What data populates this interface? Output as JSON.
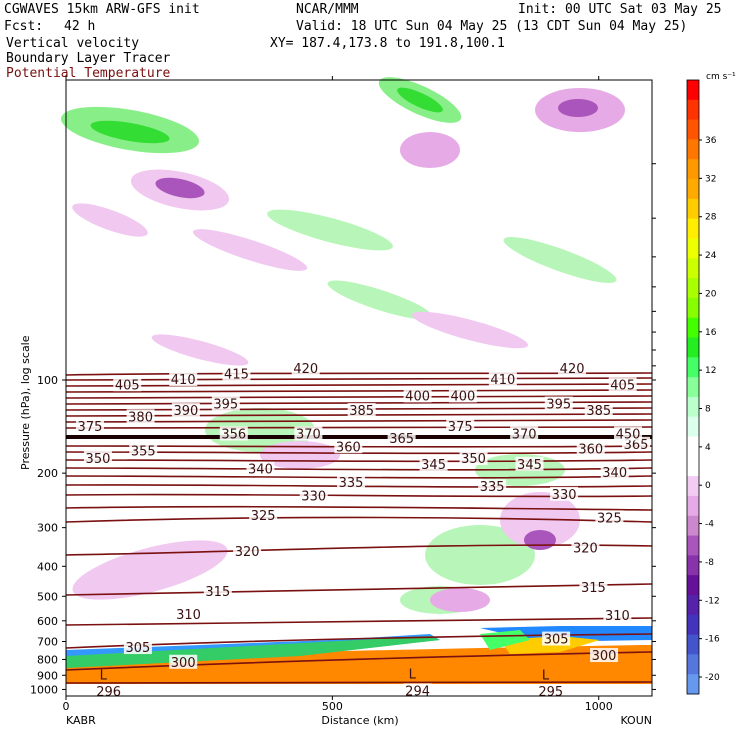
{
  "header": {
    "model": "CGWAVES 15km ARW-GFS init",
    "org": "NCAR/MMM",
    "init": "Init: 00 UTC Sat 03 May 25",
    "fcst_label": "Fcst:",
    "fcst_value": "42 h",
    "valid": "Valid: 18 UTC Sun 04 May 25 (13 CDT Sun 04 May 25)",
    "fields": [
      "Vertical velocity",
      "Boundary Layer Tracer",
      "Potential Temperature"
    ],
    "xy": "XY= 187.4,173.8 to 191.8,100.1"
  },
  "chart_data": {
    "type": "heatmap",
    "xlabel": "Distance (km)",
    "ylabel": "Pressure (hPa), log scale",
    "x_ticks": [
      "0",
      "500",
      "1000"
    ],
    "x_endpoints": [
      "KABR",
      "KOUN"
    ],
    "xlim": [
      0,
      1100
    ],
    "ylim": [
      1050,
      10
    ],
    "y_scale": "log",
    "y_ticks": [
      "100",
      "200",
      "300",
      "400",
      "500",
      "600",
      "700",
      "800",
      "900",
      "1000"
    ],
    "colorbar": {
      "unit": "cm s⁻¹",
      "labels": [
        "36",
        "32",
        "28",
        "24",
        "20",
        "16",
        "12",
        "8",
        "4",
        "0",
        "-4",
        "-8",
        "-12",
        "-16",
        "-20"
      ],
      "colors": [
        "#ff0000",
        "#ff3300",
        "#ff5500",
        "#ff7700",
        "#ff9900",
        "#ffaa00",
        "#ffcc00",
        "#ffee00",
        "#eeff00",
        "#ccff00",
        "#aaff00",
        "#88ff00",
        "#44ff00",
        "#22ee22",
        "#44ff66",
        "#88ff99",
        "#bbffcc",
        "#ddffee",
        "#ffffff",
        "#ffffff",
        "#f2ccf2",
        "#e6aae6",
        "#cc88cc",
        "#aa55bb",
        "#8833aa",
        "#661199",
        "#5522aa",
        "#4433bb",
        "#4455cc",
        "#5577dd",
        "#6699ee"
      ],
      "legend_placement": "right"
    },
    "theta_contour_labels": [
      {
        "label": "420",
        "d": 450,
        "p": 92
      },
      {
        "label": "420",
        "d": 950,
        "p": 92
      },
      {
        "label": "415",
        "d": 320,
        "p": 96
      },
      {
        "label": "410",
        "d": 220,
        "p": 100
      },
      {
        "label": "410",
        "d": 820,
        "p": 100
      },
      {
        "label": "405",
        "d": 115,
        "p": 104
      },
      {
        "label": "405",
        "d": 1045,
        "p": 104
      },
      {
        "label": "400",
        "d": 660,
        "p": 113
      },
      {
        "label": "400",
        "d": 745,
        "p": 113
      },
      {
        "label": "395",
        "d": 300,
        "p": 120
      },
      {
        "label": "395",
        "d": 925,
        "p": 120
      },
      {
        "label": "390",
        "d": 225,
        "p": 126
      },
      {
        "label": "385",
        "d": 555,
        "p": 126
      },
      {
        "label": "385",
        "d": 1000,
        "p": 126
      },
      {
        "label": "380",
        "d": 140,
        "p": 132
      },
      {
        "label": "375",
        "d": 45,
        "p": 142
      },
      {
        "label": "375",
        "d": 740,
        "p": 142
      },
      {
        "label": "370",
        "d": 455,
        "p": 150
      },
      {
        "label": "370",
        "d": 860,
        "p": 150
      },
      {
        "label": "365",
        "d": 630,
        "p": 155
      },
      {
        "label": "365",
        "d": 1070,
        "p": 162
      },
      {
        "label": "360",
        "d": 530,
        "p": 165
      },
      {
        "label": "360",
        "d": 985,
        "p": 168
      },
      {
        "label": "355",
        "d": 145,
        "p": 170
      },
      {
        "label": "350",
        "d": 60,
        "p": 180
      },
      {
        "label": "350",
        "d": 765,
        "p": 180
      },
      {
        "label": "345",
        "d": 690,
        "p": 188
      },
      {
        "label": "345",
        "d": 870,
        "p": 188
      },
      {
        "label": "340",
        "d": 365,
        "p": 195
      },
      {
        "label": "340",
        "d": 1030,
        "p": 200
      },
      {
        "label": "335",
        "d": 535,
        "p": 215
      },
      {
        "label": "335",
        "d": 800,
        "p": 222
      },
      {
        "label": "330",
        "d": 465,
        "p": 238
      },
      {
        "label": "330",
        "d": 935,
        "p": 235
      },
      {
        "label": "325",
        "d": 370,
        "p": 275
      },
      {
        "label": "325",
        "d": 1020,
        "p": 280
      },
      {
        "label": "320",
        "d": 340,
        "p": 360
      },
      {
        "label": "320",
        "d": 975,
        "p": 350
      },
      {
        "label": "315",
        "d": 285,
        "p": 485
      },
      {
        "label": "315",
        "d": 990,
        "p": 470
      },
      {
        "label": "310",
        "d": 230,
        "p": 575
      },
      {
        "label": "310",
        "d": 1035,
        "p": 580
      },
      {
        "label": "305",
        "d": 135,
        "p": 735
      },
      {
        "label": "305",
        "d": 920,
        "p": 690
      },
      {
        "label": "300",
        "d": 220,
        "p": 820
      },
      {
        "label": "300",
        "d": 1010,
        "p": 780
      },
      {
        "label": "296",
        "d": 80,
        "p": 1020
      },
      {
        "label": "294",
        "d": 660,
        "p": 1015
      },
      {
        "label": "295",
        "d": 910,
        "p": 1020
      },
      {
        "label": "356",
        "d": 315,
        "p": 150
      },
      {
        "label": "450",
        "d": 1055,
        "p": 150
      }
    ],
    "low_markers": [
      {
        "label": "L",
        "d": 70,
        "p": 900
      },
      {
        "label": "L",
        "d": 650,
        "p": 895
      },
      {
        "label": "L",
        "d": 900,
        "p": 900
      }
    ]
  }
}
